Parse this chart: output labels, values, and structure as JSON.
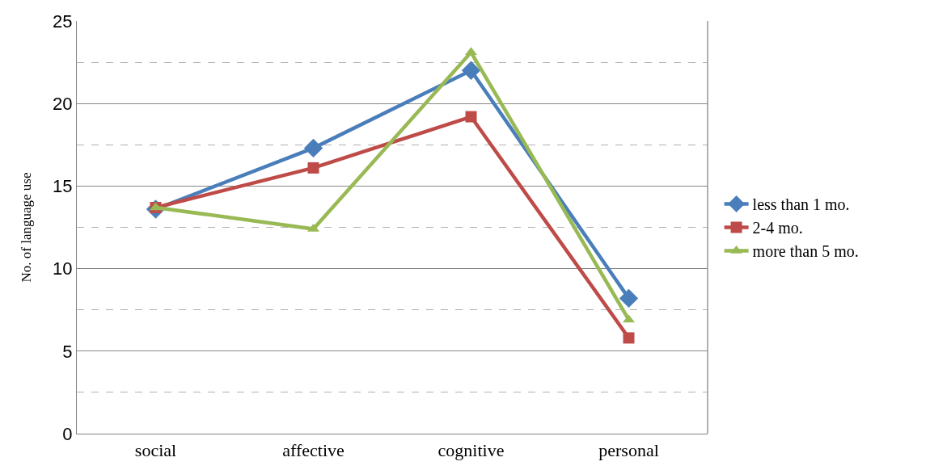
{
  "chart_data": {
    "type": "line",
    "ylabel": "No. of language use",
    "categories": [
      "social",
      "affective",
      "cognitive",
      "personal"
    ],
    "series": [
      {
        "name": "less than 1 mo.",
        "color": "#4a7ebb",
        "marker": "diamond",
        "values": [
          13.6,
          17.3,
          22.0,
          8.2
        ]
      },
      {
        "name": "2-4 mo.",
        "color": "#be4b48",
        "marker": "square",
        "values": [
          13.7,
          16.1,
          19.2,
          5.8
        ]
      },
      {
        "name": "more than 5 mo.",
        "color": "#98b954",
        "marker": "triangle",
        "values": [
          13.7,
          12.4,
          23.1,
          6.9
        ]
      }
    ],
    "ylim": [
      0,
      25
    ],
    "yticks": [
      0,
      5,
      10,
      15,
      20,
      25
    ],
    "grid": "y",
    "legend": "right",
    "line_style": "solid"
  }
}
